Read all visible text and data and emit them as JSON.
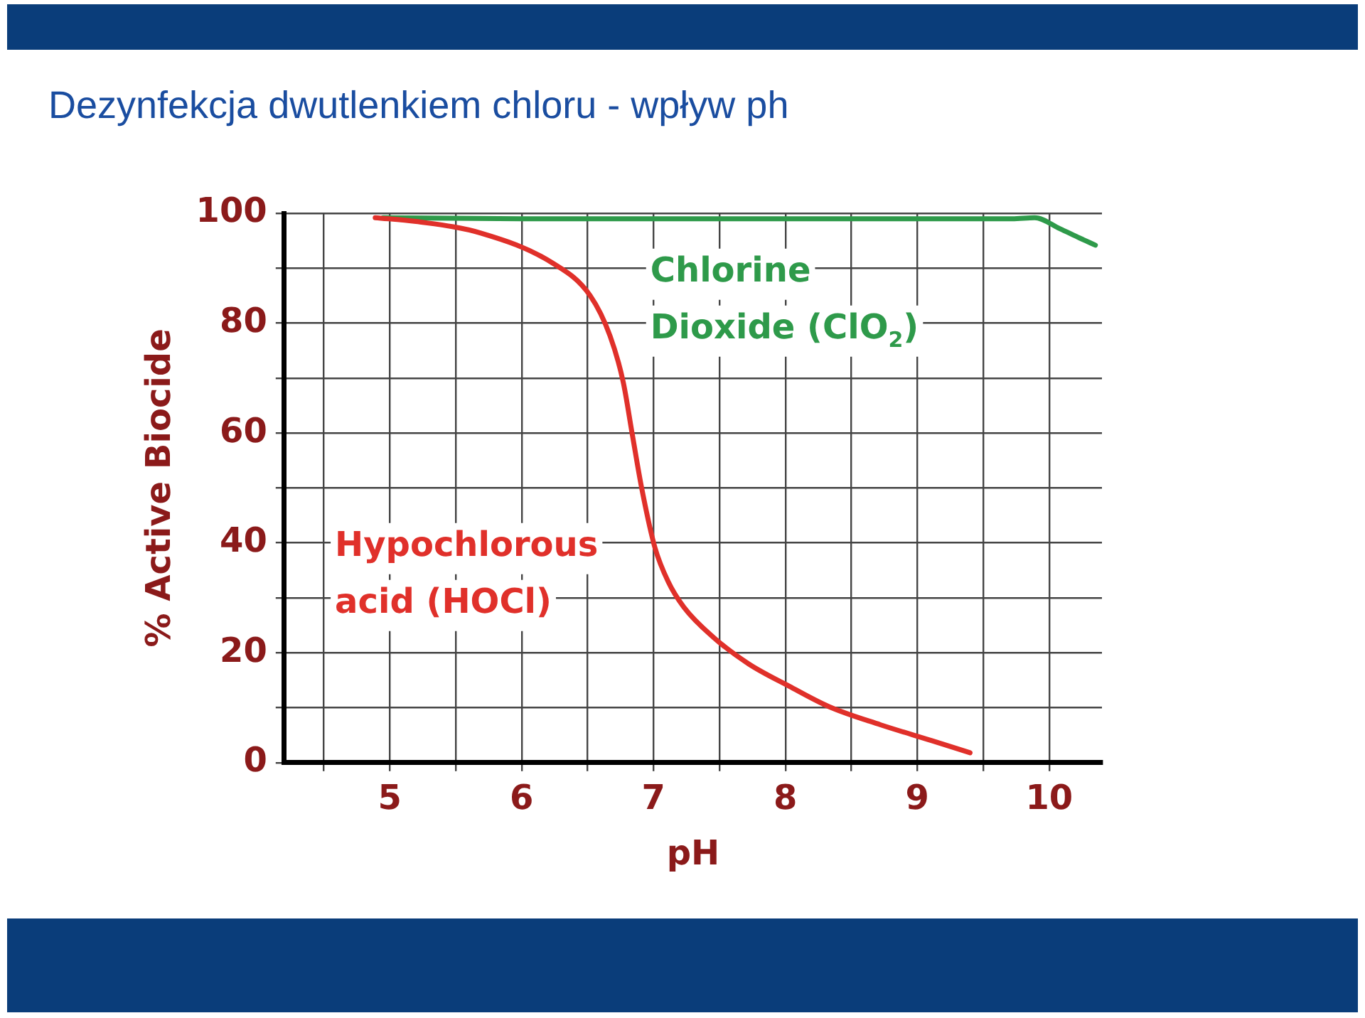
{
  "chart_data": {
    "type": "line",
    "title": "Dezynfekcja dwutlenkiem chloru - wpływ ph",
    "xlabel": "pH",
    "ylabel": "% Active Biocide",
    "xlim": [
      4.2,
      10.4
    ],
    "xticks": [
      {
        "value": 4.5,
        "label": null
      },
      5,
      {
        "value": 5.5,
        "label": null
      },
      6,
      {
        "value": 6.5,
        "label": null
      },
      7,
      {
        "value": 7.5,
        "label": null
      },
      8,
      {
        "value": 8.5,
        "label": null
      },
      9,
      {
        "value": 9.5,
        "label": null
      },
      10
    ],
    "ylim": [
      0,
      100
    ],
    "yticks": [
      0,
      {
        "value": 10,
        "label": null
      },
      20,
      {
        "value": 30,
        "label": null
      },
      40,
      {
        "value": 50,
        "label": null
      },
      60,
      {
        "value": 70,
        "label": null
      },
      80,
      {
        "value": 90,
        "label": null
      },
      100
    ],
    "grid": true,
    "legend": false,
    "marker": "none",
    "line_style": "solid",
    "series": [
      {
        "name": "Hypochlorous acid (HOCl)",
        "color": "#e0302a",
        "x": [
          4.89,
          5.2,
          5.69,
          6.23,
          6.52,
          6.67,
          6.77,
          6.84,
          6.91,
          7.01,
          7.11,
          7.23,
          7.45,
          7.72,
          8.03,
          8.33,
          8.72,
          9.11,
          9.4
        ],
        "values": [
          99.2,
          98.5,
          96.4,
          91,
          85,
          77.7,
          69.3,
          59.6,
          50,
          39.2,
          33,
          28.3,
          22.9,
          18,
          13.9,
          10.2,
          6.9,
          4,
          1.8
        ]
      },
      {
        "name": "Chlorine Dioxide (ClO$_{2}$)",
        "color": "#2e9a4a",
        "x": [
          4.95,
          6,
          7,
          8,
          9,
          9.72,
          9.89,
          10.08,
          10.23,
          10.35
        ],
        "values": [
          99.2,
          99,
          99,
          99,
          99,
          99,
          99.2,
          97.2,
          95.5,
          94.2
        ]
      }
    ]
  }
}
